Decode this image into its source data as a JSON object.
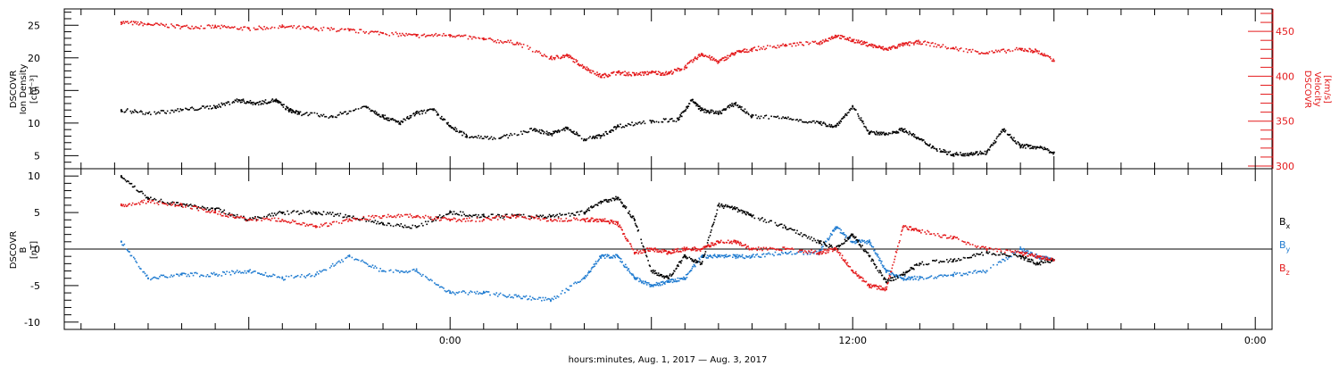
{
  "chart_data": [
    {
      "type": "scatter",
      "panel": "top",
      "ylabel_lines": [
        "DSCOVR",
        "Ion Density",
        "[cm⁻³]"
      ],
      "ylabel_right_lines": [
        "DSCOVR",
        "Velocity",
        "[km/s]"
      ],
      "ylim": [
        3,
        27.5
      ],
      "yticks": [
        5,
        10,
        15,
        20,
        25
      ],
      "y2lim": [
        297,
        475
      ],
      "y2ticks": [
        300,
        350,
        400,
        450
      ],
      "colors": {
        "density": "#000000",
        "velocity": "#e41a1c"
      },
      "series": [
        {
          "axis": "left",
          "color": "#000000",
          "x": [
            -9.8,
            -9.0,
            -8.0,
            -7.0,
            -6.3,
            -5.8,
            -5.2,
            -4.8,
            -4.5,
            -3.5,
            -2.5,
            -2.0,
            -1.5,
            -1.0,
            -0.5,
            0.0,
            0.5,
            1.5,
            2.5,
            3.0,
            3.5,
            4.0,
            4.5,
            5.0,
            6.0,
            6.8,
            7.2,
            7.5,
            8.0,
            8.5,
            9.0,
            10.0,
            11.0,
            11.5,
            12.0,
            12.5,
            13.0,
            13.5,
            14.0,
            14.5,
            15.0,
            15.5,
            16.0,
            16.5,
            17.0,
            17.5,
            18.0
          ],
          "y": [
            12,
            11.5,
            12,
            12.5,
            13.5,
            13,
            13.5,
            12,
            11.5,
            11,
            12.5,
            11,
            10,
            11.5,
            12,
            9.5,
            8,
            7.7,
            9,
            8.3,
            9.2,
            7.5,
            8,
            9.5,
            10.3,
            10.5,
            13.5,
            12,
            11.5,
            13,
            11,
            10.8,
            10,
            9.5,
            12.5,
            8.5,
            8.3,
            9,
            7.5,
            6,
            5.2,
            5.3,
            5.5,
            9,
            6.5,
            6.3,
            5.5
          ]
        },
        {
          "axis": "right",
          "color": "#e41a1c",
          "x": [
            -9.8,
            -9.0,
            -8.0,
            -7.0,
            -6.0,
            -5.0,
            -4.0,
            -3.0,
            -2.0,
            -1.0,
            0.0,
            1.0,
            2.0,
            3.0,
            3.5,
            4.0,
            4.5,
            5.0,
            5.5,
            6.0,
            6.5,
            7.0,
            7.5,
            8.0,
            8.5,
            9.0,
            10.0,
            11.0,
            11.5,
            12.0,
            12.5,
            13.0,
            13.5,
            14.0,
            15.0,
            16.0,
            17.0,
            17.5,
            18.0
          ],
          "y": [
            460,
            458,
            455,
            455,
            453,
            455,
            453,
            451,
            448,
            445,
            446,
            441,
            437,
            420,
            423,
            410,
            400,
            404,
            402,
            404,
            403,
            410,
            425,
            416,
            426,
            430,
            435,
            437,
            445,
            440,
            435,
            430,
            435,
            438,
            431,
            426,
            430,
            428,
            417
          ]
        }
      ]
    },
    {
      "type": "scatter",
      "panel": "bottom",
      "ylabel_lines": [
        "DSCOVR",
        "B",
        "[nT]"
      ],
      "ylim": [
        -11,
        11
      ],
      "yticks": [
        -10,
        -5,
        0,
        5,
        10
      ],
      "legend_position": "right",
      "series": [
        {
          "name": "B",
          "subscript": "x",
          "color": "#000000",
          "x": [
            -9.8,
            -9.0,
            -8.0,
            -7.0,
            -6.0,
            -5.0,
            -4.0,
            -3.0,
            -2.0,
            -1.0,
            0.0,
            1.0,
            2.0,
            3.0,
            4.0,
            4.5,
            5.0,
            5.5,
            6.0,
            6.5,
            7.0,
            7.5,
            8.0,
            8.5,
            9.0,
            10.0,
            11.0,
            11.5,
            12.0,
            12.5,
            13.0,
            13.5,
            14.0,
            15.0,
            16.0,
            17.0,
            17.5,
            18.0
          ],
          "y": [
            10,
            7,
            6,
            5.5,
            4,
            5,
            5,
            4.5,
            3.5,
            3,
            5,
            4.5,
            4.5,
            4.5,
            5,
            6.5,
            7,
            4,
            -3,
            -4,
            -1,
            -2,
            6,
            5.5,
            4.5,
            3,
            1,
            0,
            2,
            -1,
            -4.5,
            -3.5,
            -2,
            -1.5,
            -0.5,
            -1,
            -2,
            -1.5
          ]
        },
        {
          "name": "B",
          "subscript": "y",
          "color": "#1f7bd0",
          "x": [
            -9.8,
            -9.0,
            -8.0,
            -7.0,
            -6.0,
            -5.0,
            -4.0,
            -3.0,
            -2.0,
            -1.0,
            0.0,
            1.0,
            2.0,
            3.0,
            4.0,
            4.5,
            5.0,
            5.5,
            6.0,
            6.5,
            7.0,
            7.5,
            8.0,
            8.5,
            9.0,
            10.0,
            11.0,
            11.5,
            12.0,
            12.5,
            13.0,
            13.5,
            14.0,
            15.0,
            16.0,
            17.0,
            17.5,
            18.0
          ],
          "y": [
            1,
            -4,
            -3.5,
            -3.5,
            -3,
            -4,
            -3.5,
            -1,
            -3,
            -3,
            -6,
            -6,
            -6.5,
            -7,
            -4,
            -1,
            -1,
            -4,
            -5,
            -4.5,
            -4,
            -1,
            -1,
            -1,
            -1,
            -0.5,
            -0.5,
            3,
            1,
            1,
            -3,
            -4,
            -4,
            -3.5,
            -3,
            0,
            -1,
            -1.5
          ]
        },
        {
          "name": "B",
          "subscript": "z",
          "color": "#e41a1c",
          "x": [
            -9.8,
            -9.0,
            -8.0,
            -7.0,
            -6.0,
            -5.0,
            -4.0,
            -3.0,
            -2.0,
            -1.0,
            0.0,
            1.0,
            2.0,
            3.0,
            4.0,
            4.5,
            5.0,
            5.5,
            6.0,
            6.5,
            7.0,
            7.5,
            8.0,
            8.5,
            9.0,
            10.0,
            11.0,
            11.5,
            12.0,
            12.5,
            13.0,
            13.5,
            14.0,
            15.0,
            16.0,
            17.0,
            17.5,
            18.0
          ],
          "y": [
            6,
            6.5,
            6,
            5,
            4,
            4,
            3,
            4,
            4.5,
            4.5,
            4,
            4,
            4.5,
            4,
            4,
            4,
            3.5,
            -0.5,
            0,
            -0.5,
            0,
            0,
            1,
            1,
            0,
            0,
            -0.5,
            0,
            -3,
            -5,
            -5.5,
            3,
            2.5,
            1.5,
            0,
            -0.5,
            -1,
            -1.5
          ]
        }
      ]
    }
  ],
  "x_axis": {
    "xlim": [
      -11.5,
      24.5
    ],
    "tick_labels": [
      {
        "value": 0,
        "label": "0:00"
      },
      {
        "value": 12,
        "label": "12:00"
      },
      {
        "value": 24,
        "label": "0:00"
      }
    ],
    "xlabel": "hours:minutes, Aug.  1, 2017 — Aug.  3, 2017"
  }
}
